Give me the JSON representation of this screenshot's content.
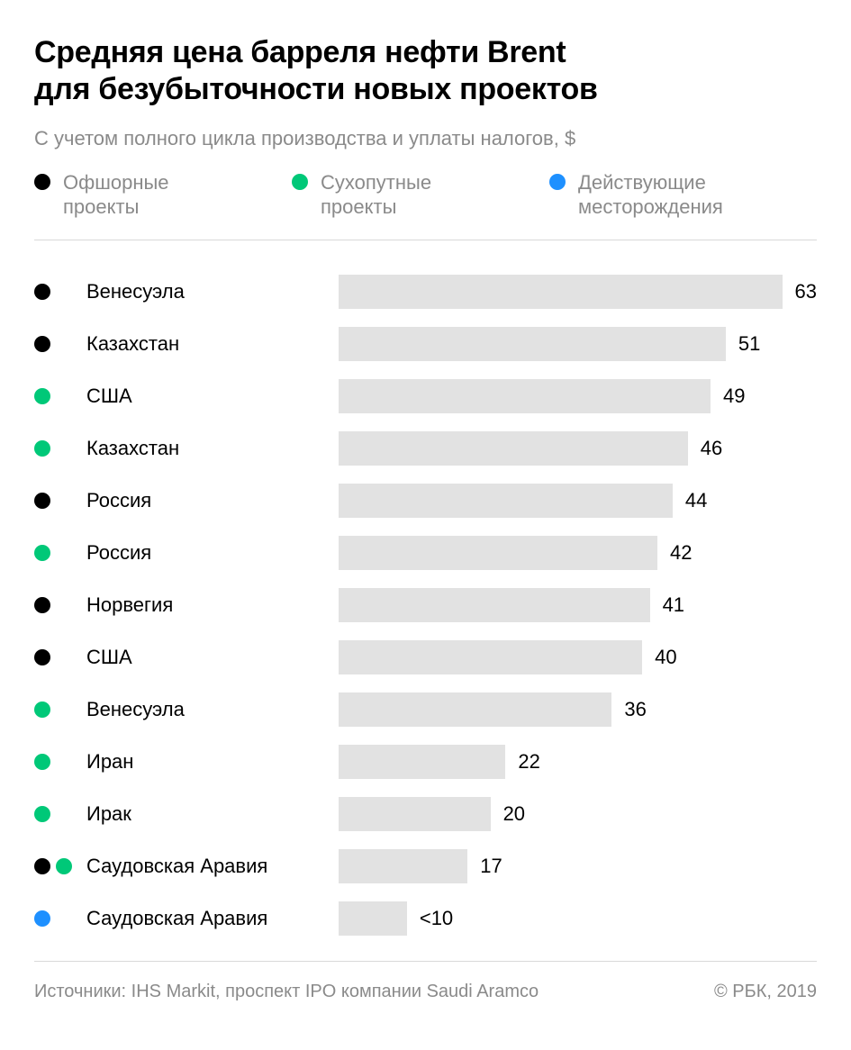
{
  "title_line1": "Средняя цена барреля нефти Brent",
  "title_line2": "для безубыточности новых проектов",
  "subtitle": "С учетом полного цикла производства и уплаты налогов, $",
  "legend": [
    {
      "color": "#000000",
      "label": "Офшорные проекты"
    },
    {
      "color": "#00c878",
      "label": "Сухопутные проекты"
    },
    {
      "color": "#1e90ff",
      "label": "Действующие месторождения"
    }
  ],
  "chart": {
    "type": "bar-horizontal",
    "max_value": 63,
    "bar_color": "#e2e2e2",
    "background_color": "#ffffff",
    "divider_color": "#d9d9d9",
    "label_fontsize": 22,
    "value_fontsize": 22,
    "rows": [
      {
        "dots": [
          "#000000"
        ],
        "label": "Венесуэла",
        "value": 63,
        "display": "63"
      },
      {
        "dots": [
          "#000000"
        ],
        "label": "Казахстан",
        "value": 51,
        "display": "51"
      },
      {
        "dots": [
          "#00c878"
        ],
        "label": "США",
        "value": 49,
        "display": "49"
      },
      {
        "dots": [
          "#00c878"
        ],
        "label": "Казахстан",
        "value": 46,
        "display": "46"
      },
      {
        "dots": [
          "#000000"
        ],
        "label": "Россия",
        "value": 44,
        "display": "44"
      },
      {
        "dots": [
          "#00c878"
        ],
        "label": "Россия",
        "value": 42,
        "display": "42"
      },
      {
        "dots": [
          "#000000"
        ],
        "label": "Норвегия",
        "value": 41,
        "display": "41"
      },
      {
        "dots": [
          "#000000"
        ],
        "label": "США",
        "value": 40,
        "display": "40"
      },
      {
        "dots": [
          "#00c878"
        ],
        "label": "Венесуэла",
        "value": 36,
        "display": "36"
      },
      {
        "dots": [
          "#00c878"
        ],
        "label": "Иран",
        "value": 22,
        "display": "22"
      },
      {
        "dots": [
          "#00c878"
        ],
        "label": "Ирак",
        "value": 20,
        "display": "20"
      },
      {
        "dots": [
          "#000000",
          "#00c878"
        ],
        "label": "Саудовская Аравия",
        "value": 17,
        "display": "17"
      },
      {
        "dots": [
          "#1e90ff"
        ],
        "label": "Саудовская Аравия",
        "value": 9,
        "display": "<10"
      }
    ]
  },
  "footer": {
    "source": "Источники: IHS Markit, проспект IPO компании Saudi Aramco",
    "copyright": "© РБК, 2019"
  }
}
